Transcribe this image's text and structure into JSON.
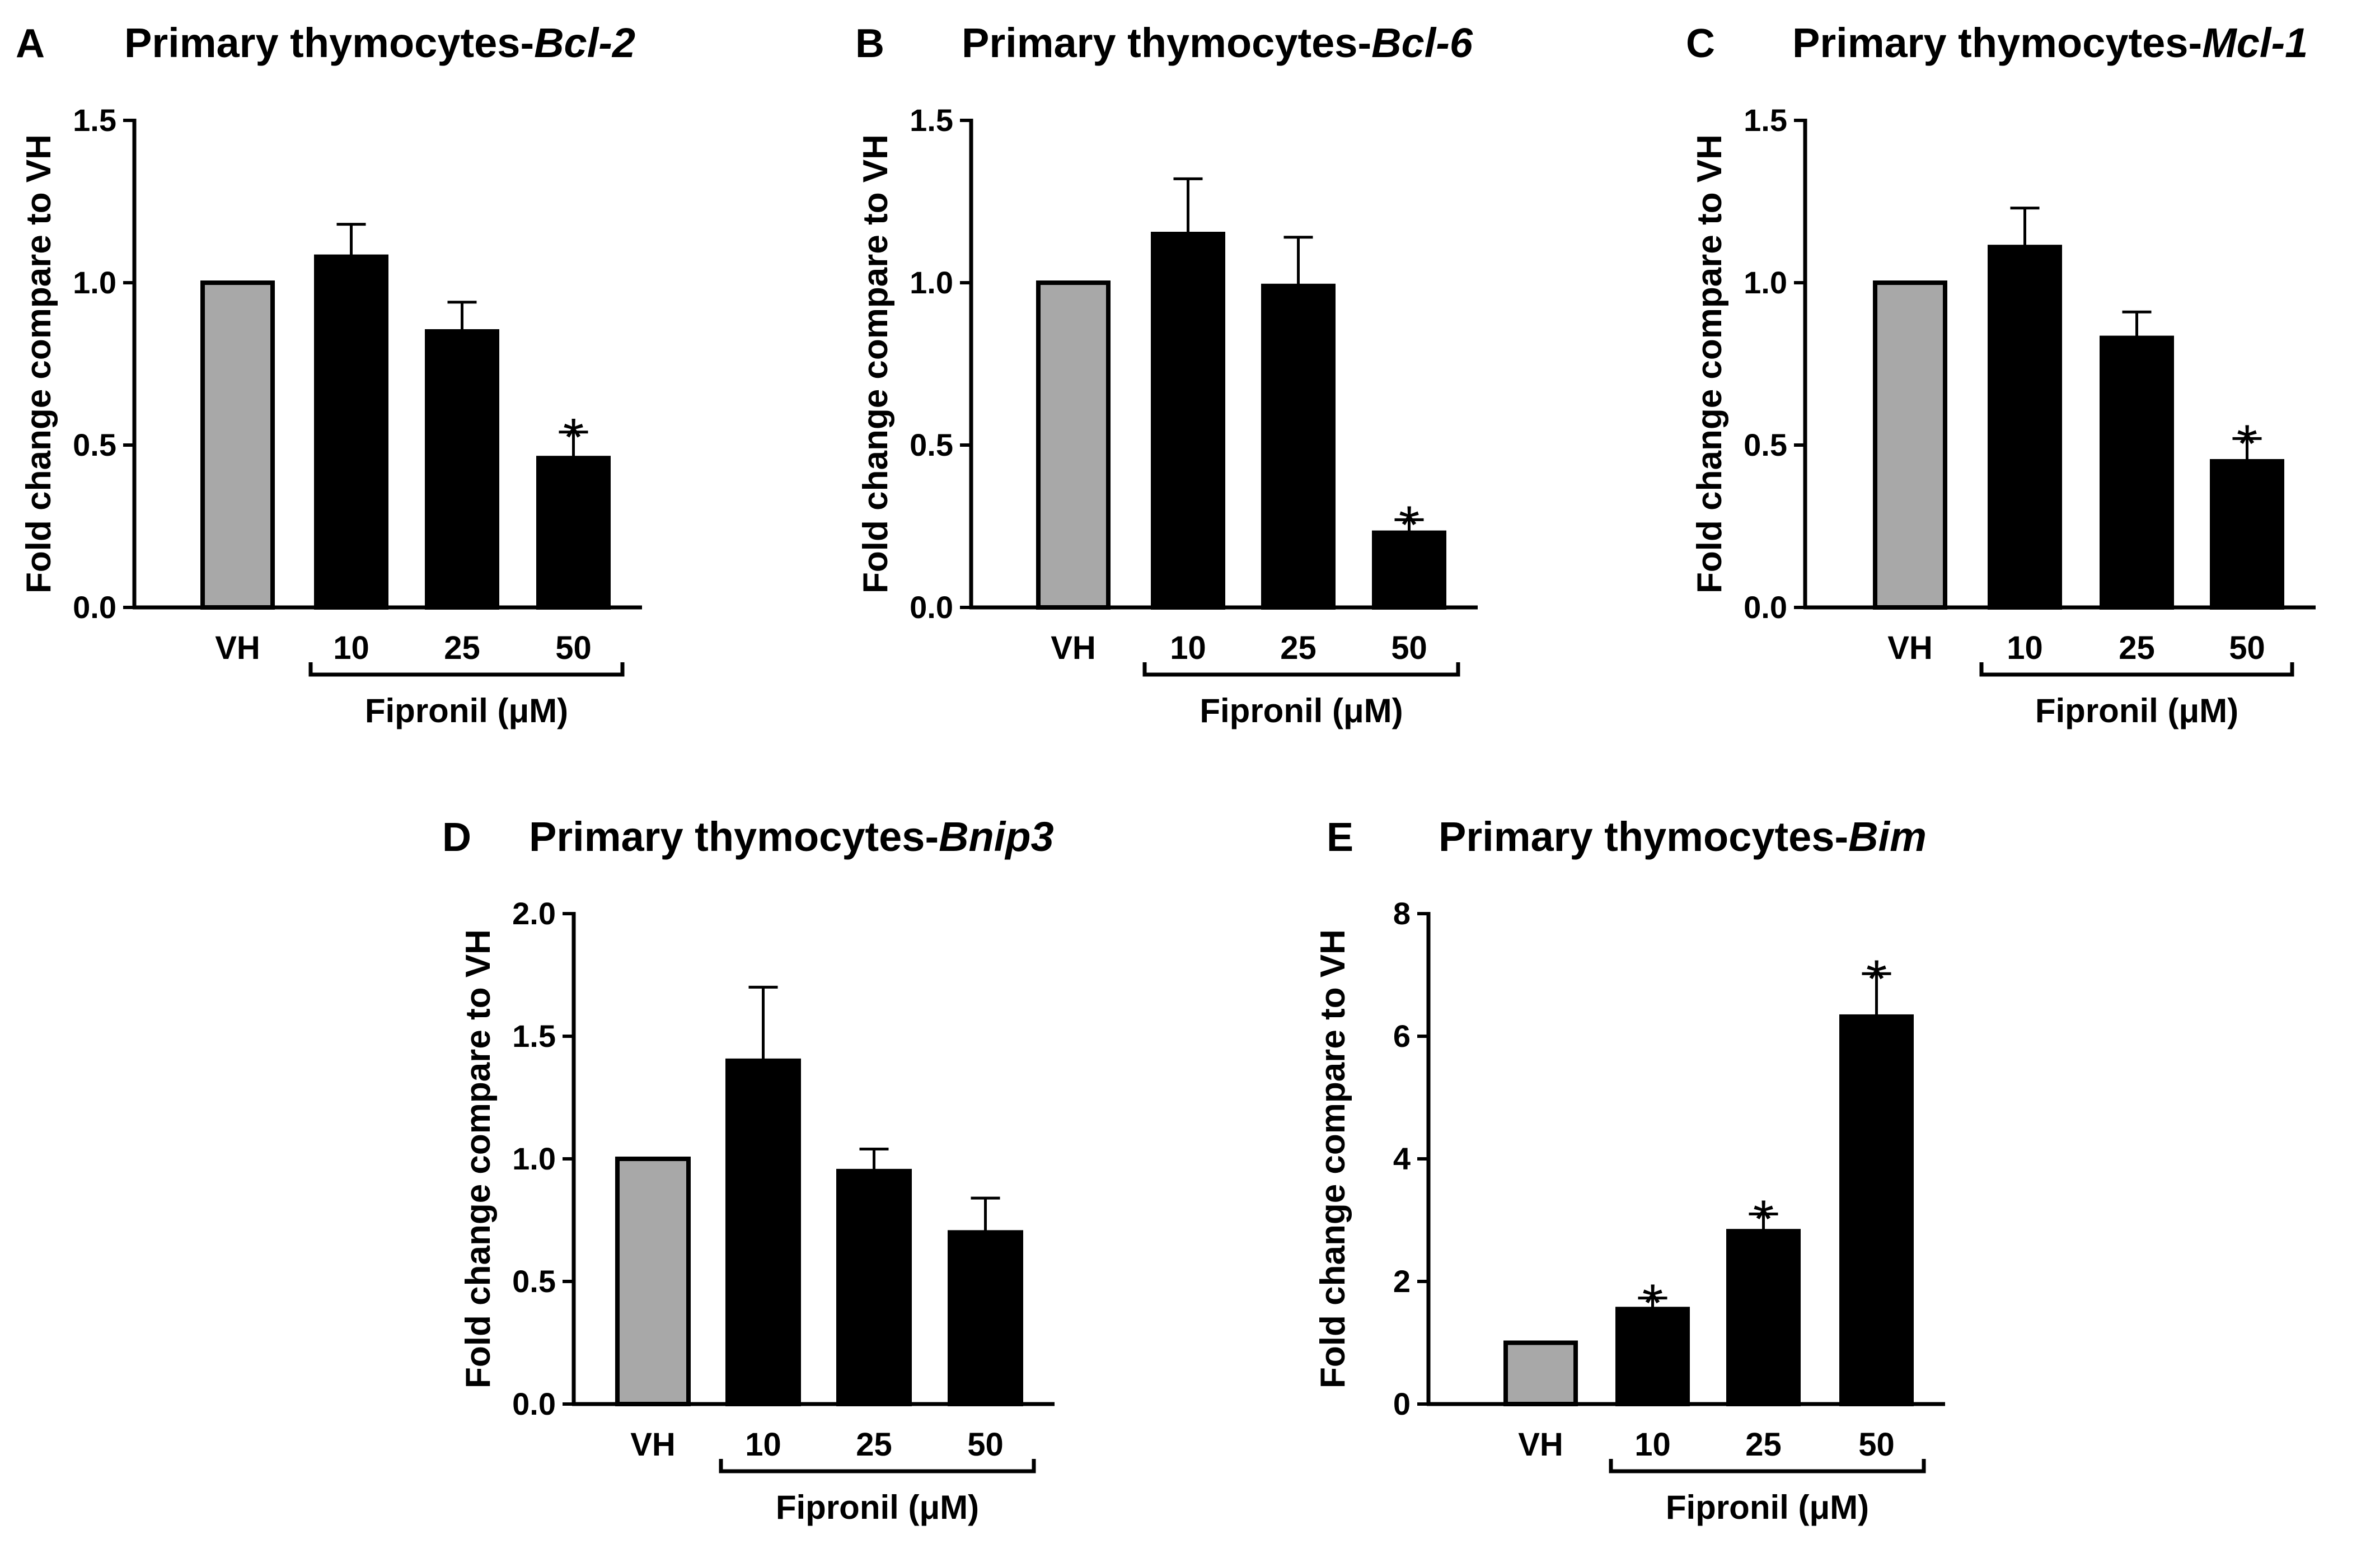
{
  "chart_data": [
    {
      "type": "bar",
      "panel": "A",
      "title_prefix": "Primary thymocytes-",
      "gene": "Bcl-2",
      "ylabel": "Fold change compare to VH",
      "categories": [
        "VH",
        "10",
        "25",
        "50"
      ],
      "values": [
        1.0,
        1.08,
        0.85,
        0.46
      ],
      "errors": [
        0,
        0.1,
        0.09,
        0.08
      ],
      "significant": [
        false,
        false,
        false,
        true
      ],
      "sig_mark": "*",
      "bar_colors": [
        "#a8a8a8",
        "#000000",
        "#000000",
        "#000000"
      ],
      "ylim": [
        0,
        1.5
      ],
      "yticks": [
        "0.0",
        "0.5",
        "1.0",
        "1.5"
      ],
      "group_label": "Fipronil (μM)"
    },
    {
      "type": "bar",
      "panel": "B",
      "title_prefix": "Primary thymocytes-",
      "gene": "Bcl-6",
      "ylabel": "Fold change compare to VH",
      "categories": [
        "VH",
        "10",
        "25",
        "50"
      ],
      "values": [
        1.0,
        1.15,
        0.99,
        0.23
      ],
      "errors": [
        0,
        0.17,
        0.15,
        0.04
      ],
      "significant": [
        false,
        false,
        false,
        true
      ],
      "sig_mark": "*",
      "bar_colors": [
        "#a8a8a8",
        "#000000",
        "#000000",
        "#000000"
      ],
      "ylim": [
        0,
        1.5
      ],
      "yticks": [
        "0.0",
        "0.5",
        "1.0",
        "1.5"
      ],
      "group_label": "Fipronil (μM)"
    },
    {
      "type": "bar",
      "panel": "C",
      "title_prefix": "Primary thymocytes-",
      "gene": "Mcl-1",
      "ylabel": "Fold change compare to VH",
      "categories": [
        "VH",
        "10",
        "25",
        "50"
      ],
      "values": [
        1.0,
        1.11,
        0.83,
        0.45
      ],
      "errors": [
        0,
        0.12,
        0.08,
        0.07
      ],
      "significant": [
        false,
        false,
        false,
        true
      ],
      "sig_mark": "*",
      "bar_colors": [
        "#a8a8a8",
        "#000000",
        "#000000",
        "#000000"
      ],
      "ylim": [
        0,
        1.5
      ],
      "yticks": [
        "0.0",
        "0.5",
        "1.0",
        "1.5"
      ],
      "group_label": "Fipronil (μM)"
    },
    {
      "type": "bar",
      "panel": "D",
      "title_prefix": "Primary thymocytes-",
      "gene": "Bnip3",
      "ylabel": "Fold change compare to VH",
      "categories": [
        "VH",
        "10",
        "25",
        "50"
      ],
      "values": [
        1.0,
        1.4,
        0.95,
        0.7
      ],
      "errors": [
        0,
        0.3,
        0.09,
        0.14
      ],
      "significant": [
        false,
        false,
        false,
        false
      ],
      "sig_mark": "*",
      "bar_colors": [
        "#a8a8a8",
        "#000000",
        "#000000",
        "#000000"
      ],
      "ylim": [
        0,
        2.0
      ],
      "yticks": [
        "0.0",
        "0.5",
        "1.0",
        "1.5",
        "2.0"
      ],
      "group_label": "Fipronil (μM)"
    },
    {
      "type": "bar",
      "panel": "E",
      "title_prefix": "Primary thymocytes-",
      "gene": "Bim",
      "ylabel": "Fold change compare to VH",
      "categories": [
        "VH",
        "10",
        "25",
        "50"
      ],
      "values": [
        1.0,
        1.55,
        2.82,
        6.32
      ],
      "errors": [
        0,
        0.18,
        0.28,
        0.7
      ],
      "significant": [
        false,
        true,
        true,
        true
      ],
      "sig_mark": "*",
      "bar_colors": [
        "#a8a8a8",
        "#000000",
        "#000000",
        "#000000"
      ],
      "ylim": [
        0,
        8
      ],
      "yticks": [
        "0",
        "2",
        "4",
        "6",
        "8"
      ],
      "group_label": "Fipronil (μM)"
    }
  ]
}
